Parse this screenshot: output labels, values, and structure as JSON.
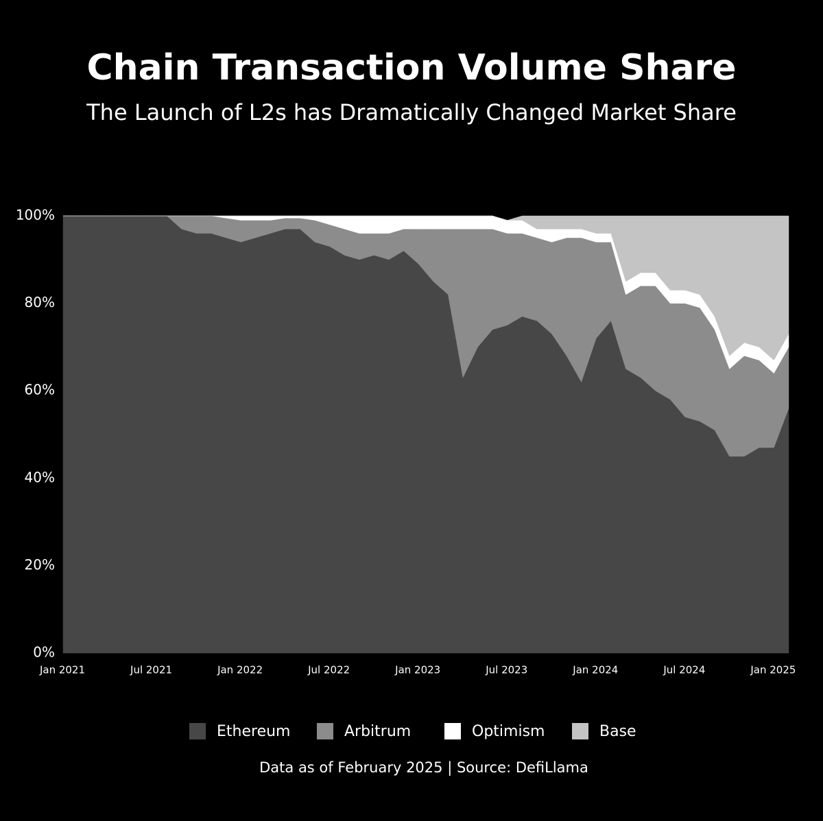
{
  "chart_data": {
    "type": "stacked_area",
    "title": "Chain Transaction Volume Share",
    "subtitle": "The Launch of L2s has Dramatically Changed Market Share",
    "footnote": "Data as of February 2025 | Source: DefiLlama",
    "x": [
      "2021-01",
      "2021-02",
      "2021-03",
      "2021-04",
      "2021-05",
      "2021-06",
      "2021-07",
      "2021-08",
      "2021-09",
      "2021-10",
      "2021-11",
      "2021-12",
      "2022-01",
      "2022-02",
      "2022-03",
      "2022-04",
      "2022-05",
      "2022-06",
      "2022-07",
      "2022-08",
      "2022-09",
      "2022-10",
      "2022-11",
      "2022-12",
      "2023-01",
      "2023-02",
      "2023-03",
      "2023-04",
      "2023-05",
      "2023-06",
      "2023-07",
      "2023-08",
      "2023-09",
      "2023-10",
      "2023-11",
      "2023-12",
      "2024-01",
      "2024-02",
      "2024-03",
      "2024-04",
      "2024-05",
      "2024-06",
      "2024-07",
      "2024-08",
      "2024-09",
      "2024-10",
      "2024-11",
      "2024-12",
      "2025-01",
      "2025-02"
    ],
    "series": [
      {
        "name": "Ethereum",
        "color": "#474747",
        "values": [
          100,
          100,
          100,
          100,
          100,
          100,
          100,
          100,
          97,
          96,
          96,
          95,
          94,
          95,
          96,
          97,
          97,
          94,
          93,
          91,
          90,
          91,
          90,
          92,
          89,
          85,
          82,
          63,
          70,
          74,
          75,
          77,
          76,
          73,
          68,
          62,
          72,
          76,
          65,
          63,
          60,
          58,
          54,
          53,
          51,
          45,
          45,
          47,
          47,
          56
        ]
      },
      {
        "name": "Arbitrum",
        "color": "#8c8c8c",
        "values": [
          0,
          0,
          0,
          0,
          0,
          0,
          0,
          0,
          3,
          4,
          4,
          4.5,
          5,
          4,
          3,
          2.5,
          2.5,
          5,
          5,
          6,
          6,
          5,
          6,
          5,
          8,
          12,
          15,
          34,
          27,
          23,
          21,
          19,
          19,
          21,
          27,
          33,
          22,
          18,
          17,
          21,
          24,
          22,
          26,
          26,
          23,
          20,
          23,
          20,
          17,
          14
        ]
      },
      {
        "name": "Optimism",
        "color": "#ffffff",
        "values": [
          0,
          0,
          0,
          0,
          0,
          0,
          0,
          0,
          0,
          0,
          0,
          0.5,
          1,
          1,
          1,
          0.5,
          0.5,
          1,
          2,
          3,
          4,
          4,
          4,
          3,
          3,
          3,
          3,
          3,
          3,
          3,
          3,
          3,
          2,
          3,
          2,
          2,
          2,
          2,
          3,
          3,
          3,
          3,
          3,
          3,
          3,
          3,
          3,
          3,
          3,
          3
        ]
      },
      {
        "name": "Base",
        "color": "#c4c4c4",
        "values": [
          0,
          0,
          0,
          0,
          0,
          0,
          0,
          0,
          0,
          0,
          0,
          0,
          0,
          0,
          0,
          0,
          0,
          0,
          0,
          0,
          0,
          0,
          0,
          0,
          0,
          0,
          0,
          0,
          0,
          0,
          0,
          1,
          3,
          3,
          3,
          3,
          4,
          4,
          15,
          13,
          13,
          17,
          17,
          18,
          23,
          32,
          29,
          30,
          33,
          27
        ]
      }
    ],
    "xlim": [
      "2021-01",
      "2025-02"
    ],
    "xticks": [
      {
        "value": "2021-01",
        "label": "Jan 2021"
      },
      {
        "value": "2021-07",
        "label": "Jul 2021"
      },
      {
        "value": "2022-01",
        "label": "Jan 2022"
      },
      {
        "value": "2022-07",
        "label": "Jul 2022"
      },
      {
        "value": "2023-01",
        "label": "Jan 2023"
      },
      {
        "value": "2023-07",
        "label": "Jul 2023"
      },
      {
        "value": "2024-01",
        "label": "Jan 2024"
      },
      {
        "value": "2024-07",
        "label": "Jul 2024"
      },
      {
        "value": "2025-01",
        "label": "Jan 2025"
      }
    ],
    "ylim": [
      0,
      100
    ],
    "yticks": [
      {
        "value": 0,
        "label": "0%"
      },
      {
        "value": 20,
        "label": "20%"
      },
      {
        "value": 40,
        "label": "40%"
      },
      {
        "value": 60,
        "label": "60%"
      },
      {
        "value": 80,
        "label": "80%"
      },
      {
        "value": 100,
        "label": "100%"
      }
    ],
    "legend": "bottom"
  }
}
